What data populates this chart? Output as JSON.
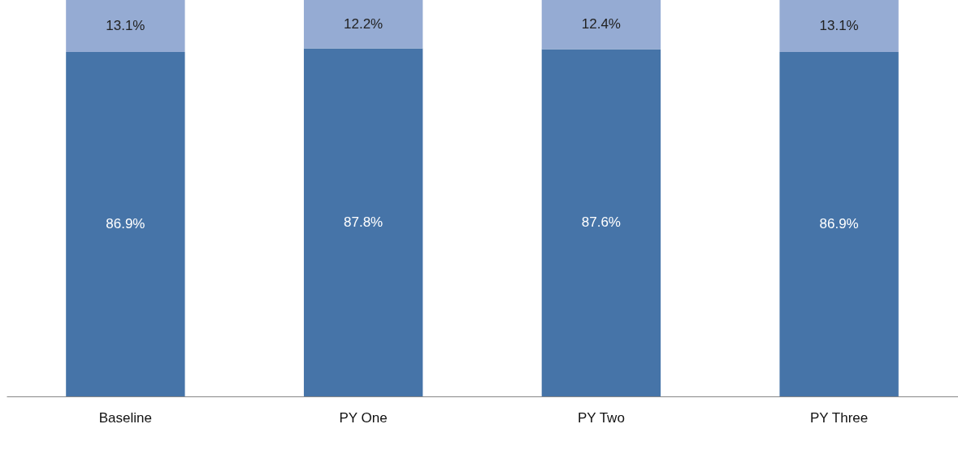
{
  "chart_data": {
    "type": "bar",
    "stacked": true,
    "data_labels": true,
    "categories": [
      "Baseline",
      "PY One",
      "PY Two",
      "PY Three"
    ],
    "series": [
      {
        "color": "#4674a8",
        "values": [
          86.9,
          87.8,
          87.6,
          86.9
        ],
        "value_labels": [
          "86.9%",
          "87.8%",
          "87.6%",
          "86.9%"
        ]
      },
      {
        "color": "#95abd3",
        "values": [
          13.1,
          12.2,
          12.4,
          13.1
        ],
        "value_labels": [
          "13.1%",
          "12.2%",
          "12.4%",
          "13.1%"
        ]
      }
    ]
  }
}
